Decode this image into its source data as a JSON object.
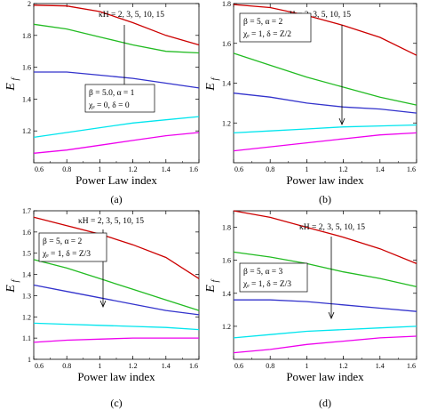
{
  "chart_data": [
    {
      "id": "a",
      "type": "line",
      "caption": "(a)",
      "xlabel": "Power Law index",
      "ylabel": "E",
      "ylabel_sub": "f",
      "xlim": [
        0.6,
        1.6
      ],
      "ylim": [
        1.0,
        2.0
      ],
      "xticks": [
        0.6,
        0.8,
        1,
        1.2,
        1.4,
        1.6
      ],
      "xtick_labels": [
        "0.6",
        "0.8",
        "1",
        "1.2",
        "1.4",
        "1.6"
      ],
      "yticks": [
        1.2,
        1.4,
        1.6,
        1.8,
        2.0
      ],
      "ytick_labels": [
        "1.2",
        "1.4",
        "1.6",
        "1.8",
        "2"
      ],
      "annotations": {
        "kappa": "κH = 2, 3, 5, 10, 15",
        "box_line1": "β = 5.0, α = 1",
        "box_line2": "χₑ = 0, δ = 0"
      },
      "legend_position": "left-middle",
      "series": [
        {
          "color": "#cc0000",
          "x": [
            0.6,
            0.8,
            1.0,
            1.2,
            1.4,
            1.6
          ],
          "y": [
            1.99,
            1.985,
            1.95,
            1.88,
            1.8,
            1.74
          ]
        },
        {
          "color": "#22bb22",
          "x": [
            0.6,
            0.8,
            1.0,
            1.2,
            1.4,
            1.6
          ],
          "y": [
            1.87,
            1.84,
            1.79,
            1.74,
            1.7,
            1.69
          ]
        },
        {
          "color": "#3333cc",
          "x": [
            0.6,
            0.8,
            1.0,
            1.2,
            1.4,
            1.6
          ],
          "y": [
            1.57,
            1.57,
            1.55,
            1.53,
            1.5,
            1.47
          ]
        },
        {
          "color": "#00e5ee",
          "x": [
            0.6,
            0.8,
            1.0,
            1.2,
            1.4,
            1.6
          ],
          "y": [
            1.16,
            1.19,
            1.22,
            1.25,
            1.27,
            1.29
          ]
        },
        {
          "color": "#ee00ee",
          "x": [
            0.6,
            0.8,
            1.0,
            1.2,
            1.4,
            1.6
          ],
          "y": [
            1.06,
            1.08,
            1.11,
            1.14,
            1.17,
            1.19
          ]
        }
      ]
    },
    {
      "id": "b",
      "type": "line",
      "caption": "(b)",
      "xlabel": "Power law index",
      "ylabel": "E",
      "ylabel_sub": "f",
      "xlim": [
        0.6,
        1.6
      ],
      "ylim": [
        1.0,
        1.8
      ],
      "xticks": [
        0.6,
        0.8,
        1,
        1.2,
        1.4,
        1.6
      ],
      "xtick_labels": [
        "0.6",
        "0.8",
        "1",
        "1.2",
        "1.4",
        "1.6"
      ],
      "yticks": [
        1.2,
        1.4,
        1.6,
        1.8
      ],
      "ytick_labels": [
        "1.2",
        "1.4",
        "1.6",
        "1.8"
      ],
      "annotations": {
        "kappa": "κH = 2, 3, 5, 10, 15",
        "box_line1": "β = 5, α = 2",
        "box_line2": "χₑ = 1, δ = Z/2"
      },
      "legend_position": "top-left",
      "series": [
        {
          "color": "#cc0000",
          "x": [
            0.6,
            0.8,
            1.0,
            1.2,
            1.4,
            1.6
          ],
          "y": [
            1.795,
            1.78,
            1.74,
            1.69,
            1.63,
            1.54
          ]
        },
        {
          "color": "#22bb22",
          "x": [
            0.6,
            0.8,
            1.0,
            1.2,
            1.4,
            1.6
          ],
          "y": [
            1.55,
            1.49,
            1.43,
            1.38,
            1.33,
            1.29
          ]
        },
        {
          "color": "#3333cc",
          "x": [
            0.6,
            0.8,
            1.0,
            1.2,
            1.4,
            1.6
          ],
          "y": [
            1.35,
            1.33,
            1.3,
            1.28,
            1.27,
            1.25
          ]
        },
        {
          "color": "#00e5ee",
          "x": [
            0.6,
            0.8,
            1.0,
            1.2,
            1.4,
            1.6
          ],
          "y": [
            1.15,
            1.16,
            1.17,
            1.18,
            1.185,
            1.19
          ]
        },
        {
          "color": "#ee00ee",
          "x": [
            0.6,
            0.8,
            1.0,
            1.2,
            1.4,
            1.6
          ],
          "y": [
            1.06,
            1.08,
            1.1,
            1.12,
            1.14,
            1.15
          ]
        }
      ]
    },
    {
      "id": "c",
      "type": "line",
      "caption": "(c)",
      "xlabel": "Power law index",
      "ylabel": "E",
      "ylabel_sub": "f",
      "xlim": [
        0.6,
        1.6
      ],
      "ylim": [
        1.0,
        1.7
      ],
      "xticks": [
        0.6,
        0.8,
        1,
        1.2,
        1.4,
        1.6
      ],
      "xtick_labels": [
        "0.6",
        "0.8",
        "1",
        "1.2",
        "1.4",
        "1.6"
      ],
      "yticks": [
        1.0,
        1.1,
        1.2,
        1.3,
        1.4,
        1.5,
        1.6,
        1.7
      ],
      "ytick_labels": [
        "1",
        "1.1",
        "1.2",
        "1.3",
        "1.4",
        "1.5",
        "1.6",
        "1.7"
      ],
      "annotations": {
        "kappa": "κH = 2, 3, 5, 10, 15",
        "box_line1": "β = 5, α = 2",
        "box_line2": "χₑ = 1, δ = Z/3"
      },
      "legend_position": "top-left",
      "series": [
        {
          "color": "#cc0000",
          "x": [
            0.6,
            0.8,
            1.0,
            1.2,
            1.4,
            1.6
          ],
          "y": [
            1.67,
            1.63,
            1.59,
            1.54,
            1.48,
            1.38
          ]
        },
        {
          "color": "#22bb22",
          "x": [
            0.6,
            0.8,
            1.0,
            1.2,
            1.4,
            1.6
          ],
          "y": [
            1.47,
            1.43,
            1.38,
            1.33,
            1.28,
            1.23
          ]
        },
        {
          "color": "#3333cc",
          "x": [
            0.6,
            0.8,
            1.0,
            1.2,
            1.4,
            1.6
          ],
          "y": [
            1.35,
            1.32,
            1.29,
            1.26,
            1.23,
            1.21
          ]
        },
        {
          "color": "#00e5ee",
          "x": [
            0.6,
            0.8,
            1.0,
            1.2,
            1.4,
            1.6
          ],
          "y": [
            1.17,
            1.165,
            1.16,
            1.155,
            1.15,
            1.14
          ]
        },
        {
          "color": "#ee00ee",
          "x": [
            0.6,
            0.8,
            1.0,
            1.2,
            1.4,
            1.6
          ],
          "y": [
            1.08,
            1.09,
            1.095,
            1.1,
            1.1,
            1.1
          ]
        }
      ]
    },
    {
      "id": "d",
      "type": "line",
      "caption": "(d)",
      "xlabel": "Power law index",
      "ylabel": "E",
      "ylabel_sub": "f",
      "xlim": [
        0.6,
        1.6
      ],
      "ylim": [
        1.0,
        1.9
      ],
      "xticks": [
        0.6,
        0.8,
        1,
        1.2,
        1.4,
        1.6
      ],
      "xtick_labels": [
        "0.6",
        "0.8",
        "1",
        "1.2",
        "1.4",
        "1.6"
      ],
      "yticks": [
        1.2,
        1.4,
        1.6,
        1.8
      ],
      "ytick_labels": [
        "1.2",
        "1.4",
        "1.6",
        "1.8"
      ],
      "annotations": {
        "kappa": "κH = 2, 3, 5, 10, 15",
        "box_line1": "β = 5, α = 3",
        "box_line2": "χₑ = 1, δ = Z/3"
      },
      "legend_position": "top-left",
      "series": [
        {
          "color": "#cc0000",
          "x": [
            0.6,
            0.8,
            1.0,
            1.2,
            1.4,
            1.6
          ],
          "y": [
            1.9,
            1.86,
            1.8,
            1.74,
            1.67,
            1.58
          ]
        },
        {
          "color": "#22bb22",
          "x": [
            0.6,
            0.8,
            1.0,
            1.2,
            1.4,
            1.6
          ],
          "y": [
            1.65,
            1.62,
            1.58,
            1.53,
            1.49,
            1.44
          ]
        },
        {
          "color": "#3333cc",
          "x": [
            0.6,
            0.8,
            1.0,
            1.2,
            1.4,
            1.6
          ],
          "y": [
            1.36,
            1.36,
            1.35,
            1.33,
            1.31,
            1.29
          ]
        },
        {
          "color": "#00e5ee",
          "x": [
            0.6,
            0.8,
            1.0,
            1.2,
            1.4,
            1.6
          ],
          "y": [
            1.13,
            1.15,
            1.17,
            1.18,
            1.19,
            1.2
          ]
        },
        {
          "color": "#ee00ee",
          "x": [
            0.6,
            0.8,
            1.0,
            1.2,
            1.4,
            1.6
          ],
          "y": [
            1.04,
            1.06,
            1.09,
            1.11,
            1.13,
            1.14
          ]
        }
      ]
    }
  ]
}
